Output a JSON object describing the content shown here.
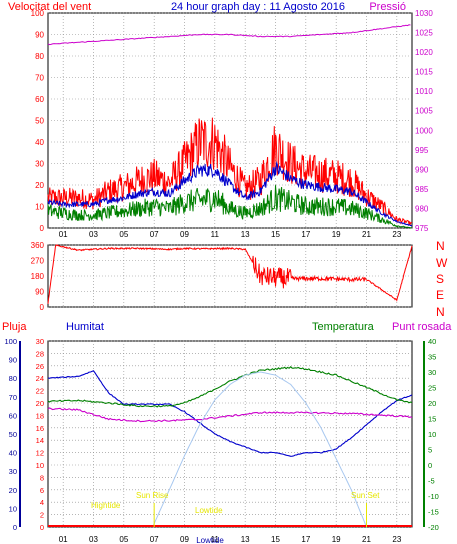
{
  "colors": {
    "red": "#ff0000",
    "blue": "#0000cc",
    "green": "#008000",
    "magenta": "#cc00cc",
    "navy": "#000099",
    "yellow": "#e6e600",
    "skyblue": "#a8c8f0",
    "grid": "#8a8a8a"
  },
  "panel1": {
    "title_left": "Velocitat del vent",
    "title_center": "24 hour graph day : 11 Agosto 2016",
    "title_right": "Pressió",
    "left_ticks": [
      "100",
      "90",
      "80",
      "70",
      "60",
      "50",
      "40",
      "30",
      "20",
      "10",
      "0"
    ],
    "right_ticks": [
      "1030",
      "1025",
      "1020",
      "1015",
      "1010",
      "1005",
      "1000",
      "995",
      "990",
      "985",
      "980",
      "975"
    ]
  },
  "panel2": {
    "left_ticks": [
      "360",
      "270",
      "180",
      "90",
      "0"
    ],
    "compass": [
      "N",
      "W",
      "S",
      "E",
      "N"
    ]
  },
  "panel3": {
    "label_rain": "Pluja",
    "label_hum": "Humitat",
    "label_temp": "Temperatura",
    "label_dew": "Punt rosada",
    "hum_ticks": [
      "100",
      "90",
      "80",
      "70",
      "60",
      "50",
      "40",
      "30",
      "20",
      "10",
      "0"
    ],
    "rain_ticks": [
      "30",
      "28",
      "26",
      "24",
      "22",
      "20",
      "18",
      "16",
      "14",
      "12",
      "10",
      "8",
      "6",
      "4",
      "2",
      "0"
    ],
    "temp_ticks": [
      "40",
      "35",
      "30",
      "25",
      "20",
      "15",
      "10",
      "5",
      "0",
      "-5",
      "-10",
      "-15",
      "-20"
    ],
    "annotations": {
      "hightide": "Hightide",
      "sunrise": "Sun Rise",
      "lowtide": "Lowtide",
      "sunset": "Sun Set",
      "lowtide2": "Lowtide"
    }
  },
  "x_labels": [
    "01",
    "03",
    "05",
    "07",
    "09",
    "11",
    "13",
    "15",
    "17",
    "19",
    "21",
    "23"
  ],
  "chart_data": [
    {
      "type": "line",
      "title": "24 hour graph day : 11 Agosto 2016",
      "series": [
        {
          "name": "Velocitat del vent",
          "color": "red",
          "x": [
            0,
            1,
            2,
            3,
            4,
            5,
            6,
            7,
            8,
            9,
            10,
            11,
            12,
            13,
            14,
            15,
            16,
            17,
            18,
            19,
            20,
            21,
            22,
            23,
            24
          ],
          "values": [
            14,
            14,
            14,
            13,
            17,
            19,
            22,
            24,
            21,
            30,
            40,
            40,
            28,
            18,
            22,
            38,
            30,
            26,
            25,
            24,
            22,
            15,
            10,
            4,
            2
          ]
        },
        {
          "name": "wind-avg",
          "color": "blue",
          "x": [
            0,
            1,
            2,
            3,
            4,
            5,
            6,
            7,
            8,
            9,
            10,
            11,
            12,
            13,
            14,
            15,
            16,
            17,
            18,
            19,
            20,
            21,
            22,
            23,
            24
          ],
          "values": [
            12,
            11,
            11,
            11,
            13,
            14,
            16,
            17,
            16,
            22,
            27,
            27,
            20,
            14,
            17,
            28,
            23,
            20,
            19,
            18,
            17,
            12,
            7,
            3,
            1
          ]
        },
        {
          "name": "wind-min",
          "color": "green",
          "x": [
            0,
            1,
            2,
            3,
            4,
            5,
            6,
            7,
            8,
            9,
            10,
            11,
            12,
            13,
            14,
            15,
            16,
            17,
            18,
            19,
            20,
            21,
            22,
            23,
            24
          ],
          "values": [
            8,
            7,
            6,
            6,
            7,
            8,
            9,
            10,
            9,
            12,
            13,
            14,
            9,
            7,
            9,
            14,
            12,
            10,
            10,
            10,
            9,
            7,
            4,
            1,
            0
          ]
        },
        {
          "name": "Pressió",
          "color": "magenta",
          "x": [
            0,
            2,
            4,
            6,
            8,
            10,
            12,
            14,
            16,
            18,
            20,
            22,
            24
          ],
          "values": [
            1022,
            1022.5,
            1023,
            1023.5,
            1024,
            1024.5,
            1024.5,
            1024,
            1024,
            1024.5,
            1025,
            1026,
            1027
          ]
        }
      ],
      "ylim_left": [
        0,
        100
      ],
      "ylim_right": [
        975,
        1030
      ]
    },
    {
      "type": "line",
      "title": "",
      "series": [
        {
          "name": "",
          "color": "red",
          "x": [
            0,
            0.5,
            1,
            2,
            4,
            6,
            8,
            9,
            10,
            12,
            13,
            14,
            15,
            16,
            18,
            20,
            21,
            23,
            24
          ],
          "values": [
            20,
            358,
            350,
            330,
            340,
            340,
            335,
            340,
            338,
            340,
            335,
            180,
            170,
            165,
            165,
            160,
            160,
            40,
            355
          ]
        }
      ],
      "ylim": [
        0,
        360
      ]
    },
    {
      "type": "line",
      "title": "",
      "series": [
        {
          "name": "Humitat",
          "color": "blue",
          "x": [
            0,
            2,
            3,
            4,
            5,
            6,
            7,
            8,
            9,
            10,
            11,
            12,
            13,
            14,
            15,
            16,
            17,
            18,
            19,
            20,
            21,
            22,
            23,
            24
          ],
          "values": [
            80,
            81,
            84,
            72,
            66,
            66,
            66,
            66,
            62,
            56,
            50,
            46,
            43,
            40,
            40,
            38,
            40,
            40,
            42,
            48,
            55,
            62,
            68,
            71
          ]
        },
        {
          "name": "Temperatura",
          "color": "green",
          "x": [
            0,
            2,
            4,
            6,
            8,
            9,
            10,
            11,
            12,
            13,
            14,
            15,
            16,
            17,
            18,
            19,
            20,
            21,
            22,
            23,
            24
          ],
          "values": [
            20.5,
            20.8,
            20,
            19,
            19,
            20,
            22,
            24.5,
            27,
            29,
            30.5,
            31,
            31.5,
            31,
            30,
            29,
            27,
            25,
            23,
            21,
            20
          ]
        },
        {
          "name": "Punt rosada",
          "color": "magenta",
          "x": [
            0,
            2,
            4,
            6,
            8,
            10,
            12,
            14,
            16,
            18,
            20,
            22,
            24
          ],
          "values": [
            18.2,
            17.8,
            14.8,
            14.2,
            14.3,
            14.7,
            15.8,
            16.9,
            16.9,
            16.8,
            16.6,
            16.1,
            15.5
          ]
        },
        {
          "name": "solar",
          "color": "skyblue",
          "x": [
            6.9,
            8,
            9,
            10,
            11,
            12,
            13,
            14,
            15,
            16,
            17,
            18,
            19,
            20,
            21
          ],
          "values": [
            -20,
            -8,
            3,
            13,
            21,
            26,
            29,
            30,
            29,
            26,
            20,
            12,
            2,
            -8,
            -20
          ]
        }
      ],
      "ylim_humidity": [
        0,
        100
      ],
      "ylim_rain": [
        0,
        30
      ],
      "ylim_temp": [
        -20,
        40
      ]
    }
  ]
}
